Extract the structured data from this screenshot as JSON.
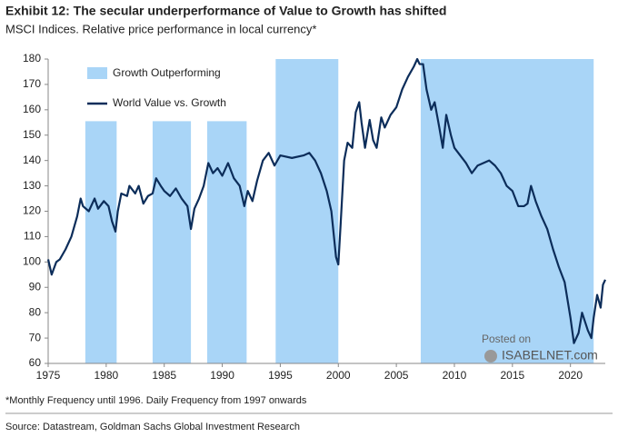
{
  "chart_data": {
    "type": "line",
    "title": "Exhibit 12: The secular underperformance of Value to Growth has shifted",
    "subtitle": "MSCI Indices. Relative price performance in local currency*",
    "footnote": "*Monthly Frequency until 1996. Daily Frequency from 1997 onwards",
    "source": "Source: Datastream, Goldman Sachs Global Investment Research",
    "watermark": [
      "Posted on",
      "ISABELNET.com"
    ],
    "xlim": [
      1975,
      2023
    ],
    "xticks": [
      1975,
      1980,
      1985,
      1990,
      1995,
      2000,
      2005,
      2010,
      2015,
      2020
    ],
    "ylim": [
      60,
      180
    ],
    "yticks": [
      60,
      70,
      80,
      90,
      100,
      110,
      120,
      130,
      140,
      150,
      160,
      170,
      180
    ],
    "regions": {
      "name": "Growth Outperforming",
      "color": "#a9d5f7",
      "spans": [
        {
          "start": 1978.2,
          "end": 1980.9,
          "top": 155.5
        },
        {
          "start": 1984.0,
          "end": 1987.3,
          "top": 155.5
        },
        {
          "start": 1988.7,
          "end": 1992.1,
          "top": 155.5
        },
        {
          "start": 1994.6,
          "end": 2000.0,
          "top": 180
        },
        {
          "start": 2007.1,
          "end": 2022.0,
          "top": 180
        }
      ]
    },
    "series": [
      {
        "name": "World Value vs. Growth",
        "color": "#0c2d5a",
        "x": [
          1975.0,
          1975.3,
          1975.7,
          1976,
          1976.5,
          1977,
          1977.5,
          1977.8,
          1978,
          1978.5,
          1979,
          1979.3,
          1979.8,
          1980.2,
          1980.5,
          1980.8,
          1981,
          1981.3,
          1981.8,
          1982,
          1982.5,
          1982.8,
          1983.2,
          1983.6,
          1984,
          1984.3,
          1984.7,
          1985,
          1985.5,
          1986,
          1986.5,
          1987,
          1987.3,
          1987.6,
          1988,
          1988.4,
          1988.8,
          1989.2,
          1989.6,
          1990,
          1990.5,
          1991,
          1991.5,
          1991.9,
          1992.2,
          1992.6,
          1993,
          1993.5,
          1994,
          1994.5,
          1995,
          1996,
          1997,
          1997.5,
          1998,
          1998.5,
          1999,
          1999.4,
          1999.8,
          2000,
          2000.2,
          2000.5,
          2000.8,
          2001.2,
          2001.5,
          2001.8,
          2002,
          2002.3,
          2002.7,
          2003,
          2003.3,
          2003.7,
          2004,
          2004.5,
          2005,
          2005.5,
          2006,
          2006.5,
          2006.8,
          2007,
          2007.3,
          2007.6,
          2008,
          2008.3,
          2008.7,
          2009,
          2009.3,
          2009.7,
          2010,
          2010.5,
          2011,
          2011.5,
          2012,
          2013,
          2013.5,
          2014,
          2014.5,
          2015,
          2015.5,
          2016,
          2016.3,
          2016.6,
          2017,
          2017.5,
          2018,
          2018.5,
          2019,
          2019.5,
          2020,
          2020.3,
          2020.7,
          2021,
          2021.5,
          2021.8,
          2022,
          2022.3,
          2022.6,
          2022.8,
          2023
        ],
        "values": [
          101,
          95,
          100,
          101,
          105,
          110,
          118,
          125,
          122,
          120,
          125,
          121,
          124,
          122,
          116,
          112,
          120,
          127,
          126,
          130,
          127,
          130,
          123,
          126,
          127,
          133,
          130,
          128,
          126,
          129,
          125,
          122,
          113,
          121,
          125,
          130,
          139,
          135,
          137,
          134,
          139,
          133,
          130,
          122,
          128,
          124,
          132,
          140,
          143,
          138,
          142,
          141,
          142,
          143,
          140,
          135,
          128,
          120,
          102,
          99,
          115,
          140,
          147,
          145,
          159,
          163,
          155,
          145,
          156,
          148,
          145,
          157,
          153,
          158,
          161,
          168,
          173,
          177,
          180,
          178,
          178,
          168,
          160,
          163,
          153,
          145,
          158,
          150,
          145,
          142,
          139,
          135,
          138,
          140,
          138,
          135,
          130,
          128,
          122,
          122,
          123,
          130,
          124,
          118,
          113,
          105,
          98,
          92,
          78,
          68,
          72,
          80,
          73,
          70,
          78,
          87,
          82,
          91,
          93
        ]
      }
    ]
  }
}
